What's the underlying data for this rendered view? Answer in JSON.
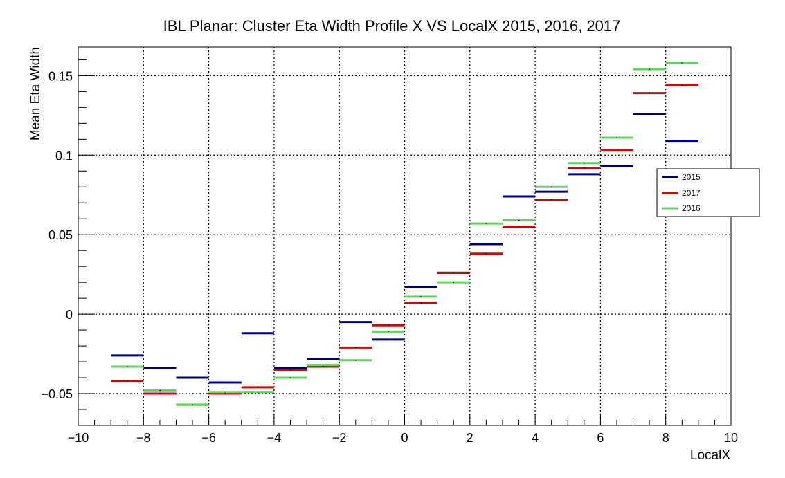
{
  "chart_data": {
    "type": "line",
    "title": "IBL Planar: Cluster Eta Width Profile X VS LocalX 2015, 2016, 2017",
    "xlabel": "LocalX",
    "ylabel": "Mean Eta Width",
    "xlim": [
      -10,
      10
    ],
    "ylim": [
      -0.07,
      0.168
    ],
    "grid": true,
    "legend_position": "right",
    "x_ticks": [
      -10,
      -8,
      -6,
      -4,
      -2,
      0,
      2,
      4,
      6,
      8,
      10
    ],
    "x_tick_labels": [
      "−10",
      "−8",
      "−6",
      "−4",
      "−2",
      "0",
      "2",
      "4",
      "6",
      "8",
      "10"
    ],
    "y_ticks": [
      -0.05,
      0,
      0.05,
      0.1,
      0.15
    ],
    "y_tick_labels": [
      "−0.05",
      "0",
      "0.05",
      "0.1",
      "0.15"
    ],
    "bin_edges": [
      -9,
      -8,
      -7,
      -6,
      -5,
      -4,
      -3,
      -2,
      -1,
      0,
      1,
      2,
      3,
      4,
      5,
      6,
      7,
      8,
      9
    ],
    "series": [
      {
        "name": "2015",
        "color": "#000080",
        "values": [
          -0.026,
          -0.034,
          -0.04,
          -0.043,
          -0.012,
          -0.034,
          -0.028,
          -0.005,
          -0.016,
          0.017,
          0.026,
          0.044,
          0.074,
          0.077,
          0.088,
          0.093,
          0.126,
          0.109
        ]
      },
      {
        "name": "2017",
        "color": "#e00000",
        "values": [
          -0.042,
          -0.05,
          -0.057,
          -0.05,
          -0.046,
          -0.035,
          -0.033,
          -0.021,
          -0.007,
          0.007,
          0.026,
          0.038,
          0.055,
          0.072,
          0.092,
          0.103,
          0.139,
          0.144
        ]
      },
      {
        "name": "2016",
        "color": "#5ed65e",
        "values": [
          -0.033,
          -0.048,
          -0.057,
          -0.049,
          -0.049,
          -0.04,
          -0.032,
          -0.029,
          -0.011,
          0.011,
          0.02,
          0.057,
          0.059,
          0.08,
          0.095,
          0.111,
          0.154,
          0.158
        ]
      }
    ]
  }
}
